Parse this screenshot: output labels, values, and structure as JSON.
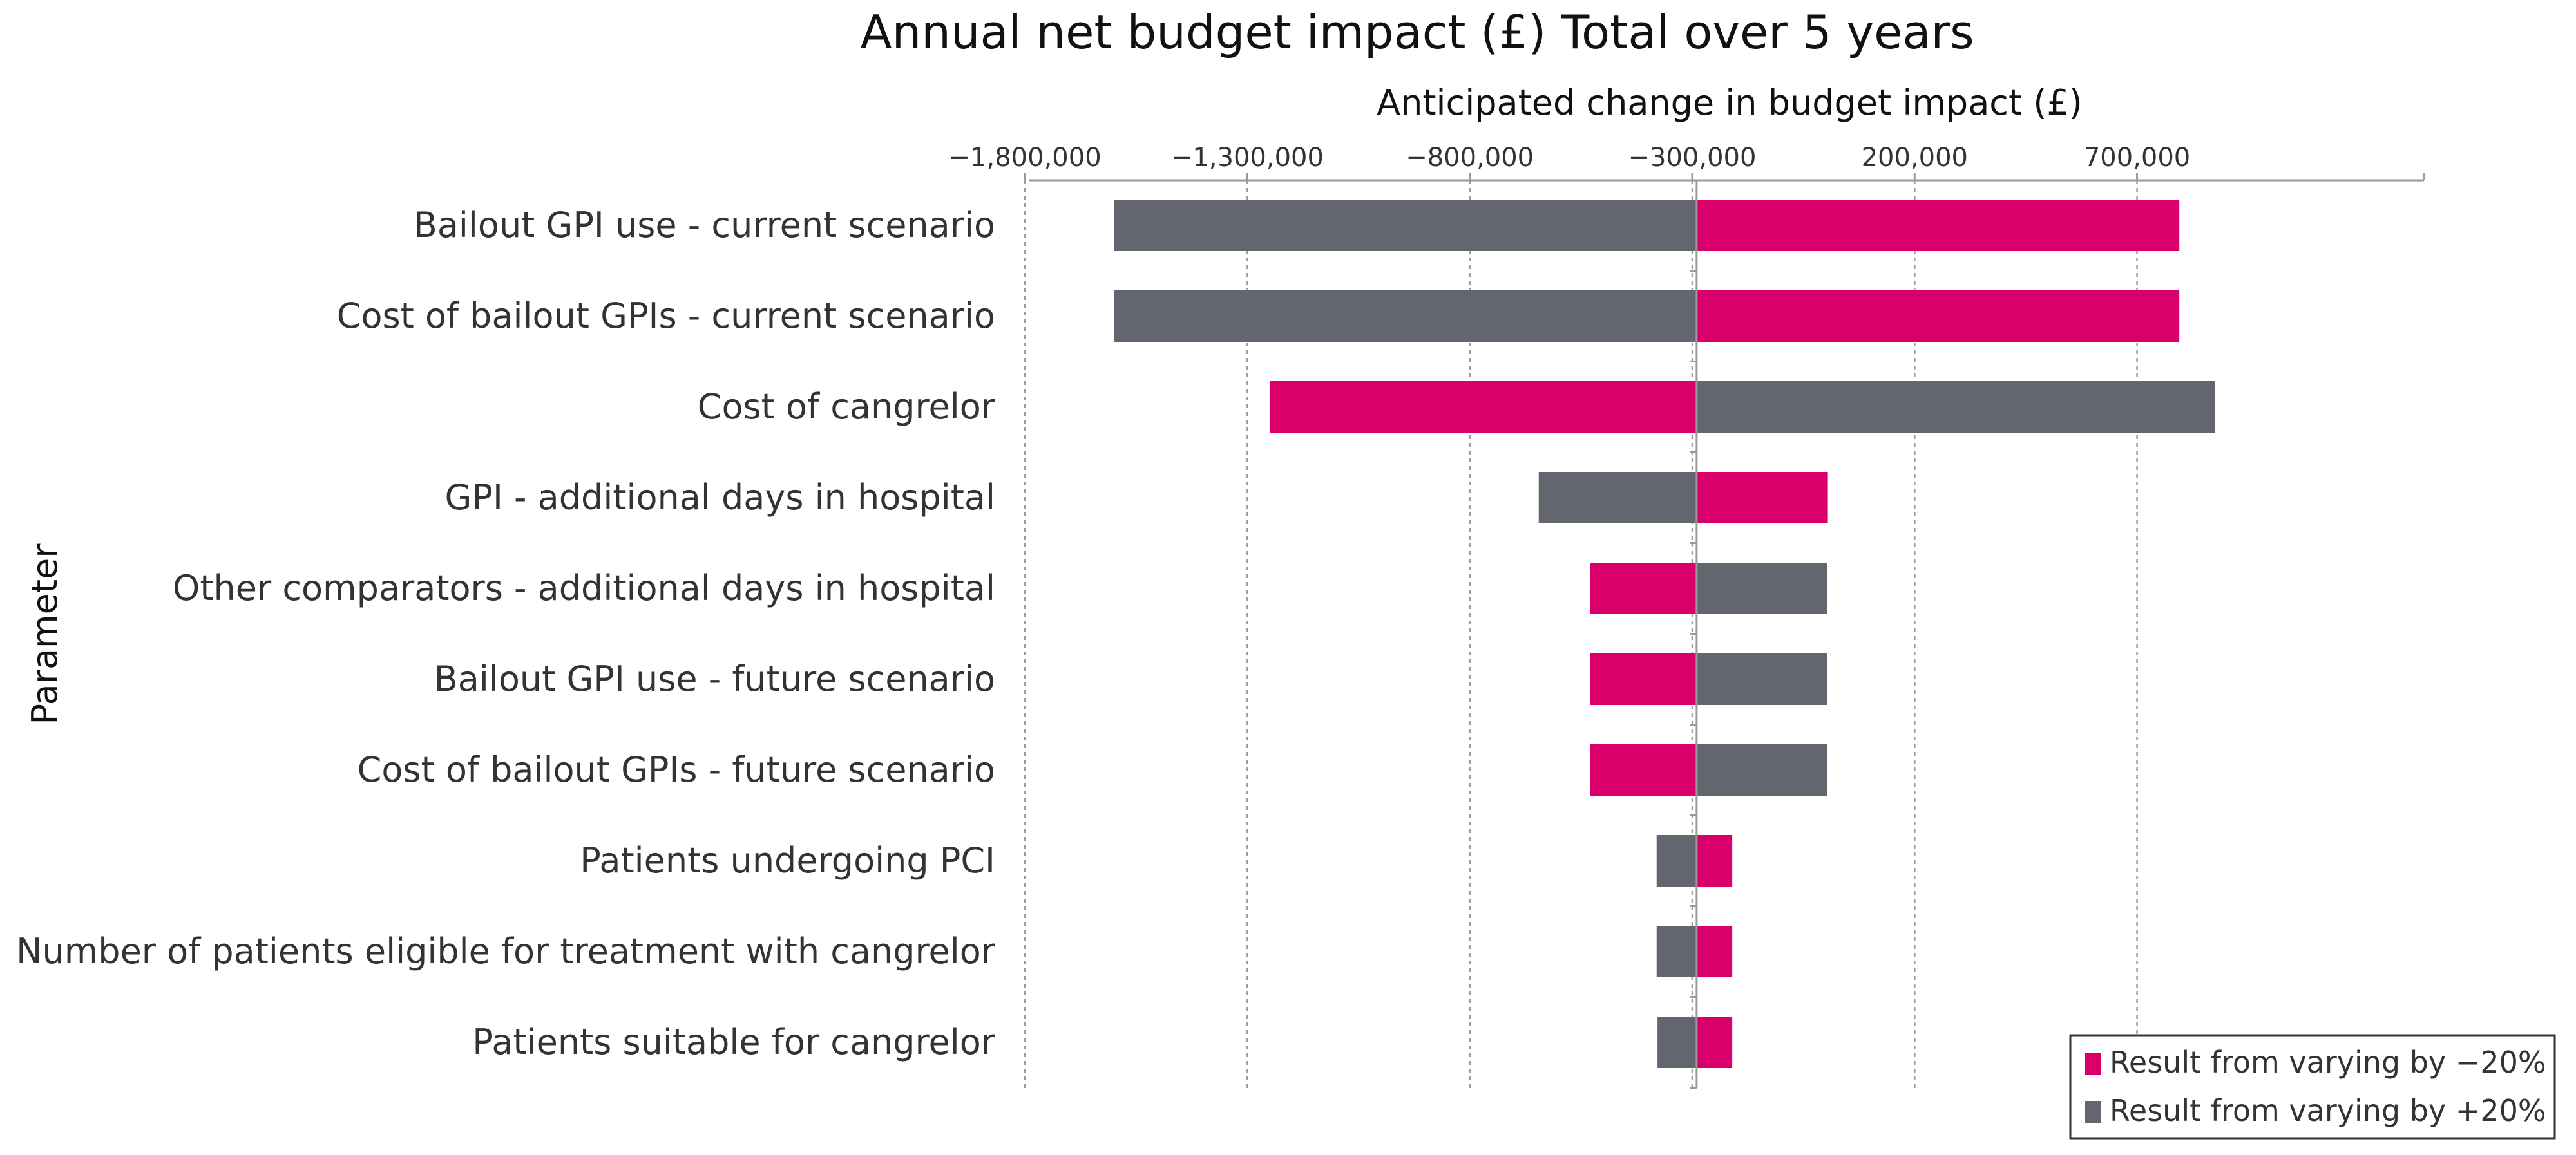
{
  "chart_data": {
    "type": "bar",
    "orientation": "horizontal",
    "subtype": "tornado",
    "title": "Annual net budget impact (£) Total over 5 years",
    "xlabel": "Anticipated change in budget impact (£)",
    "ylabel": "Parameter",
    "xlim": [
      -1790000,
      1345000
    ],
    "baseline": -290000,
    "xticks": [
      -1800000,
      -1300000,
      -800000,
      -300000,
      200000,
      700000
    ],
    "xtick_labels": [
      "−1,800,000",
      "−1,300,000",
      "−800,000",
      "−300,000",
      "200,000",
      "700,000"
    ],
    "grid": true,
    "legend_position": "bottom-right",
    "categories": [
      "Bailout GPI use - current scenario",
      "Cost of bailout GPIs - current scenario",
      "Cost of cangrelor",
      "GPI - additional days in hospital",
      "Other comparators - additional days in hospital",
      "Bailout GPI use - future scenario",
      "Cost of bailout GPIs - future scenario",
      "Patients undergoing PCI",
      "Number of patients eligible for treatment with cangrelor",
      "Patients suitable for cangrelor"
    ],
    "series": [
      {
        "name": "Result from varying by −20%",
        "color": "#d9006c",
        "values": [
          795000,
          795000,
          -1250000,
          5000,
          -530000,
          -530000,
          -530000,
          -210000,
          -210000,
          -210000
        ]
      },
      {
        "name": "Result from varying by +20%",
        "color": "#63666e",
        "values": [
          -1600000,
          -1600000,
          875000,
          -645000,
          4000,
          4000,
          4000,
          -380000,
          -380000,
          -378000
        ]
      }
    ]
  }
}
